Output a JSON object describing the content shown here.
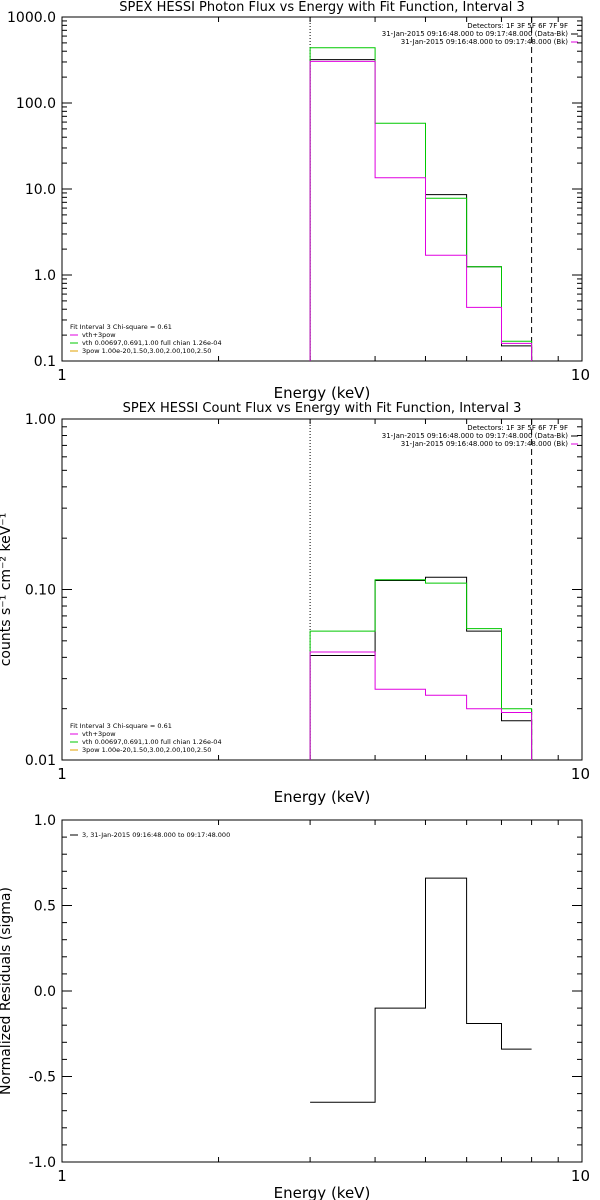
{
  "chart_data": [
    {
      "type": "line",
      "title": "SPEX HESSI Photon Flux vs Energy with Fit Function, Interval 3",
      "xlabel": "Energy (keV)",
      "ylabel": "",
      "xscale": "log",
      "yscale": "log",
      "xlim": [
        1,
        10
      ],
      "ylim": [
        0.1,
        1000
      ],
      "xticks": [
        {
          "value": 1,
          "label": "1"
        },
        {
          "value": 10,
          "label": "10"
        }
      ],
      "yticks": [
        {
          "value": 0.1,
          "label": "0.1"
        },
        {
          "value": 1,
          "label": "1.0"
        },
        {
          "value": 10,
          "label": "10.0"
        },
        {
          "value": 100,
          "label": "100.0"
        },
        {
          "value": 1000,
          "label": "1000.0"
        }
      ],
      "vlines": [
        {
          "x": 3,
          "style": "dotted"
        },
        {
          "x": 8,
          "style": "dashed"
        }
      ],
      "legend_top_right": [
        "Detectors: 1F 3F 5F 6F 7F 9F",
        "31-Jan-2015 09:16:48.000 to 09:17:48.000 (Data-Bk)",
        "31-Jan-2015 09:16:48.000 to 09:17:48.000 (Bk)"
      ],
      "legend_bottom_left": [
        "Fit Interval 3   Chi-square = 0.61",
        "vth+3pow",
        "vth 0.00697,0.691,1.00  full chian 1.26e-04",
        "3pow 1.00e-20,1.50,3.00,2.00,100,2.50"
      ],
      "series": [
        {
          "color": "#000000",
          "edges": [
            3,
            4,
            5,
            6,
            7,
            8
          ],
          "values": [
            320,
            null,
            8.6,
            1.25,
            0.15
          ]
        },
        {
          "color": "#00c800",
          "edges": [
            3,
            4,
            5,
            6,
            7,
            8
          ],
          "values": [
            440,
            58,
            7.8,
            1.25,
            0.17
          ]
        },
        {
          "color": "#e000e0",
          "edges": [
            3,
            4,
            5,
            6,
            7,
            8
          ],
          "values": [
            305,
            13.5,
            1.7,
            0.42,
            0.16
          ]
        }
      ]
    },
    {
      "type": "line",
      "title": "SPEX HESSI Count Flux vs Energy with Fit Function, Interval 3",
      "xlabel": "Energy (keV)",
      "ylabel": "counts s⁻¹ cm⁻² keV⁻¹",
      "xscale": "log",
      "yscale": "log",
      "xlim": [
        1,
        10
      ],
      "ylim": [
        0.01,
        1
      ],
      "xticks": [
        {
          "value": 1,
          "label": "1"
        },
        {
          "value": 10,
          "label": "10"
        }
      ],
      "yticks": [
        {
          "value": 0.01,
          "label": "0.01"
        },
        {
          "value": 0.1,
          "label": "0.10"
        },
        {
          "value": 1,
          "label": "1.00"
        }
      ],
      "vlines": [
        {
          "x": 3,
          "style": "dotted"
        },
        {
          "x": 8,
          "style": "dashed"
        }
      ],
      "legend_top_right": [
        "Detectors: 1F 3F 5F 6F 7F 9F",
        "31-Jan-2015 09:16:48.000 to 09:17:48.000 (Data-Bk)",
        "31-Jan-2015 09:16:48.000 to 09:17:48.000 (Bk)"
      ],
      "legend_bottom_left": [
        "Fit Interval 3   Chi-square = 0.61",
        "vth+3pow",
        "vth 0.00697,0.691,1.00  full chian 1.26e-04",
        "3pow 1.00e-20,1.50,3.00,2.00,100,2.50"
      ],
      "series": [
        {
          "color": "#000000",
          "edges": [
            3,
            4,
            5,
            6,
            7,
            8
          ],
          "values": [
            0.041,
            0.113,
            0.118,
            0.057,
            0.017
          ]
        },
        {
          "color": "#00c800",
          "edges": [
            3,
            4,
            5,
            6,
            7,
            8
          ],
          "values": [
            0.057,
            0.114,
            0.109,
            0.059,
            0.02
          ]
        },
        {
          "color": "#e000e0",
          "edges": [
            3,
            4,
            5,
            6,
            7,
            8
          ],
          "values": [
            0.043,
            0.026,
            0.024,
            0.02,
            0.019
          ]
        }
      ]
    },
    {
      "type": "line",
      "title": "",
      "xlabel": "Energy (keV)",
      "ylabel": "Normalized Residuals (sigma)",
      "xscale": "log",
      "yscale": "linear",
      "xlim": [
        1,
        10
      ],
      "ylim": [
        -1,
        1
      ],
      "xticks": [
        {
          "value": 1,
          "label": "1"
        },
        {
          "value": 10,
          "label": "10"
        }
      ],
      "yticks": [
        {
          "value": -1,
          "label": "-1.0"
        },
        {
          "value": -0.5,
          "label": "-0.5"
        },
        {
          "value": 0,
          "label": "0.0"
        },
        {
          "value": 0.5,
          "label": "0.5"
        },
        {
          "value": 1,
          "label": "1.0"
        }
      ],
      "vlines": [],
      "legend_top_left": [
        "3, 31-Jan-2015 09:16:48.000 to 09:17:48.000"
      ],
      "series": [
        {
          "color": "#000000",
          "edges": [
            3,
            4,
            5,
            6,
            7,
            8
          ],
          "values": [
            -0.65,
            -0.1,
            0.66,
            -0.19,
            -0.34
          ]
        }
      ]
    }
  ]
}
